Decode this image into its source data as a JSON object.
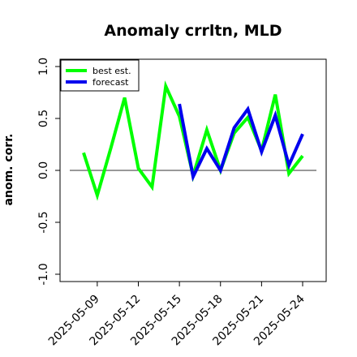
{
  "chart_data": {
    "type": "line",
    "title": "Anomaly crrltn, MLD",
    "ylabel": "anom. corr.",
    "xlabel": "",
    "ylim": [
      -1.05,
      1.1
    ],
    "yticks": [
      -1.0,
      -0.5,
      0.0,
      0.5,
      1.0
    ],
    "ytick_labels": [
      "-1.0",
      "-0.5",
      "0.0",
      "0.5",
      "1.0"
    ],
    "x_dates": [
      "2025-05-08",
      "2025-05-09",
      "2025-05-10",
      "2025-05-11",
      "2025-05-12",
      "2025-05-13",
      "2025-05-14",
      "2025-05-15",
      "2025-05-16",
      "2025-05-17",
      "2025-05-18",
      "2025-05-19",
      "2025-05-20",
      "2025-05-21",
      "2025-05-22",
      "2025-05-23",
      "2025-05-24"
    ],
    "xticks": [
      "2025-05-09",
      "2025-05-12",
      "2025-05-15",
      "2025-05-18",
      "2025-05-21",
      "2025-05-24"
    ],
    "highlight_tick": "2025-05-15",
    "highlight_color": "#228B22",
    "zero_line": true,
    "grid": false,
    "legend_position": "top-left",
    "series": [
      {
        "name": "best est.",
        "color": "#00ff00",
        "x": [
          "2025-05-08",
          "2025-05-09",
          "2025-05-10",
          "2025-05-11",
          "2025-05-12",
          "2025-05-13",
          "2025-05-14",
          "2025-05-15",
          "2025-05-16",
          "2025-05-17",
          "2025-05-18",
          "2025-05-19",
          "2025-05-20",
          "2025-05-21",
          "2025-05-22",
          "2025-05-23",
          "2025-05-24"
        ],
        "values": [
          0.17,
          -0.24,
          0.22,
          0.7,
          0.02,
          -0.16,
          0.81,
          0.52,
          -0.05,
          0.39,
          0.0,
          0.36,
          0.51,
          0.19,
          0.73,
          -0.03,
          0.14
        ]
      },
      {
        "name": "forecast",
        "color": "#0000ee",
        "x": [
          "2025-05-15",
          "2025-05-16",
          "2025-05-17",
          "2025-05-18",
          "2025-05-19",
          "2025-05-20",
          "2025-05-21",
          "2025-05-22",
          "2025-05-23",
          "2025-05-24"
        ],
        "values": [
          0.64,
          -0.06,
          0.21,
          0.0,
          0.41,
          0.59,
          0.18,
          0.53,
          0.05,
          0.35
        ]
      }
    ]
  }
}
